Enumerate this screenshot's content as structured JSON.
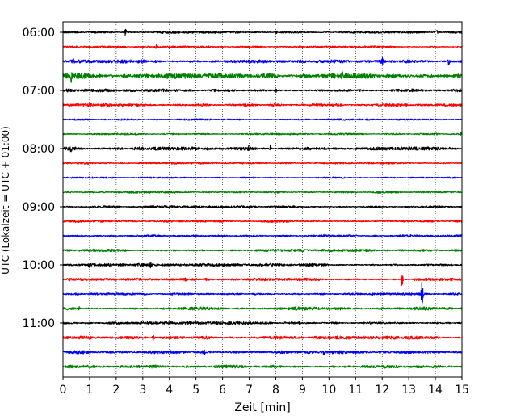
{
  "chart_data": {
    "type": "line",
    "title": "",
    "xlabel": "Zeit  [min]",
    "ylabel": "UTC (Lokalzeit = UTC + 01:00)",
    "xlim": [
      0,
      15
    ],
    "x_ticks": [
      "0",
      "1",
      "2",
      "3",
      "4",
      "5",
      "6",
      "7",
      "8",
      "9",
      "10",
      "11",
      "12",
      "13",
      "14",
      "15"
    ],
    "y_ticks": [
      "06:00",
      "07:00",
      "08:00",
      "09:00",
      "10:00",
      "11:00"
    ],
    "trace_start": "06:00",
    "trace_interval_min": 15,
    "grid": {
      "x": true,
      "y": false,
      "style": "dotted"
    },
    "trace_colors": [
      "#000000",
      "#ff0000",
      "#0000ff",
      "#008000"
    ],
    "traces": [
      {
        "start": "06:00",
        "color": "#000000",
        "amplitude": 0.1,
        "events": [
          {
            "t": 2.35,
            "amp": 0.45
          },
          {
            "t": 8.0,
            "amp": 0.3
          },
          {
            "t": 14.05,
            "amp": 0.35
          }
        ]
      },
      {
        "start": "06:15",
        "color": "#ff0000",
        "amplitude": 0.08,
        "events": [
          {
            "t": 3.5,
            "amp": 0.25
          }
        ]
      },
      {
        "start": "06:30",
        "color": "#0000ff",
        "amplitude": 0.15,
        "events": [
          {
            "t": 0.4,
            "amp": 0.35
          },
          {
            "t": 12.0,
            "amp": 0.4
          },
          {
            "t": 14.5,
            "amp": 0.4
          }
        ]
      },
      {
        "start": "06:45",
        "color": "#008000",
        "amplitude": 0.25,
        "events": [
          {
            "t": 0.3,
            "amp": 0.6
          },
          {
            "t": 10.5,
            "amp": 0.45
          }
        ]
      },
      {
        "start": "07:00",
        "color": "#000000",
        "amplitude": 0.15,
        "events": [
          {
            "t": 8.0,
            "amp": 0.3
          }
        ]
      },
      {
        "start": "07:15",
        "color": "#ff0000",
        "amplitude": 0.12,
        "events": [
          {
            "t": 1.0,
            "amp": 0.3
          }
        ]
      },
      {
        "start": "07:30",
        "color": "#0000ff",
        "amplitude": 0.08,
        "events": []
      },
      {
        "start": "07:45",
        "color": "#008000",
        "amplitude": 0.08,
        "events": [
          {
            "t": 14.95,
            "amp": 0.25
          }
        ]
      },
      {
        "start": "08:00",
        "color": "#000000",
        "amplitude": 0.15,
        "events": [
          {
            "t": 0.3,
            "amp": 0.3
          },
          {
            "t": 7.0,
            "amp": 0.3
          },
          {
            "t": 7.8,
            "amp": 0.35
          }
        ]
      },
      {
        "start": "08:15",
        "color": "#ff0000",
        "amplitude": 0.1,
        "events": []
      },
      {
        "start": "08:30",
        "color": "#0000ff",
        "amplitude": 0.07,
        "events": []
      },
      {
        "start": "08:45",
        "color": "#008000",
        "amplitude": 0.1,
        "events": []
      },
      {
        "start": "09:00",
        "color": "#000000",
        "amplitude": 0.1,
        "events": []
      },
      {
        "start": "09:15",
        "color": "#ff0000",
        "amplitude": 0.1,
        "events": []
      },
      {
        "start": "09:30",
        "color": "#0000ff",
        "amplitude": 0.1,
        "events": []
      },
      {
        "start": "09:45",
        "color": "#008000",
        "amplitude": 0.12,
        "events": []
      },
      {
        "start": "10:00",
        "color": "#000000",
        "amplitude": 0.12,
        "events": [
          {
            "t": 1.0,
            "amp": 0.3
          },
          {
            "t": 3.3,
            "amp": 0.3
          }
        ]
      },
      {
        "start": "10:15",
        "color": "#ff0000",
        "amplitude": 0.12,
        "events": [
          {
            "t": 4.6,
            "amp": 0.3
          },
          {
            "t": 12.75,
            "amp": 0.9
          }
        ]
      },
      {
        "start": "10:30",
        "color": "#0000ff",
        "amplitude": 0.1,
        "events": [
          {
            "t": 13.5,
            "amp": 1.9
          }
        ]
      },
      {
        "start": "10:45",
        "color": "#008000",
        "amplitude": 0.15,
        "events": [
          {
            "t": 0.6,
            "amp": 0.35
          }
        ]
      },
      {
        "start": "11:00",
        "color": "#000000",
        "amplitude": 0.12,
        "events": [
          {
            "t": 8.9,
            "amp": 0.3
          }
        ]
      },
      {
        "start": "11:15",
        "color": "#ff0000",
        "amplitude": 0.15,
        "events": [
          {
            "t": 3.4,
            "amp": 0.35
          }
        ]
      },
      {
        "start": "11:30",
        "color": "#0000ff",
        "amplitude": 0.15,
        "events": [
          {
            "t": 5.3,
            "amp": 0.3
          },
          {
            "t": 9.8,
            "amp": 0.3
          }
        ]
      },
      {
        "start": "11:45",
        "color": "#008000",
        "amplitude": 0.15,
        "events": []
      }
    ]
  }
}
